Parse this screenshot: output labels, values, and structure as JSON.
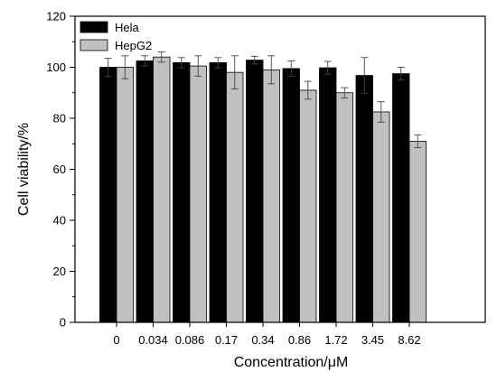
{
  "chart_data": {
    "type": "bar",
    "title": "",
    "xlabel": "Concentration/μM",
    "ylabel": "Cell viability/%",
    "ylim": [
      0,
      120
    ],
    "yticks": [
      0,
      20,
      40,
      60,
      80,
      100,
      120
    ],
    "grid": false,
    "legend_position": "top-left",
    "categories": [
      "0",
      "0.034",
      "0.086",
      "0.17",
      "0.34",
      "0.86",
      "1.72",
      "3.45",
      "8.62"
    ],
    "series": [
      {
        "name": "Hela",
        "color": "#000000",
        "values": [
          100,
          102.5,
          101.8,
          101.8,
          102.8,
          99.5,
          99.8,
          96.8,
          97.5
        ],
        "errors": [
          3.5,
          2,
          2,
          2,
          1.5,
          3,
          2.5,
          7,
          2.5
        ]
      },
      {
        "name": "HepG2",
        "color": "#c0c0c0",
        "values": [
          100,
          104,
          100.5,
          98,
          99,
          91,
          90,
          82.5,
          71
        ],
        "errors": [
          4.5,
          2,
          4,
          6.5,
          5.5,
          3.5,
          2,
          4,
          2.5
        ]
      }
    ]
  }
}
